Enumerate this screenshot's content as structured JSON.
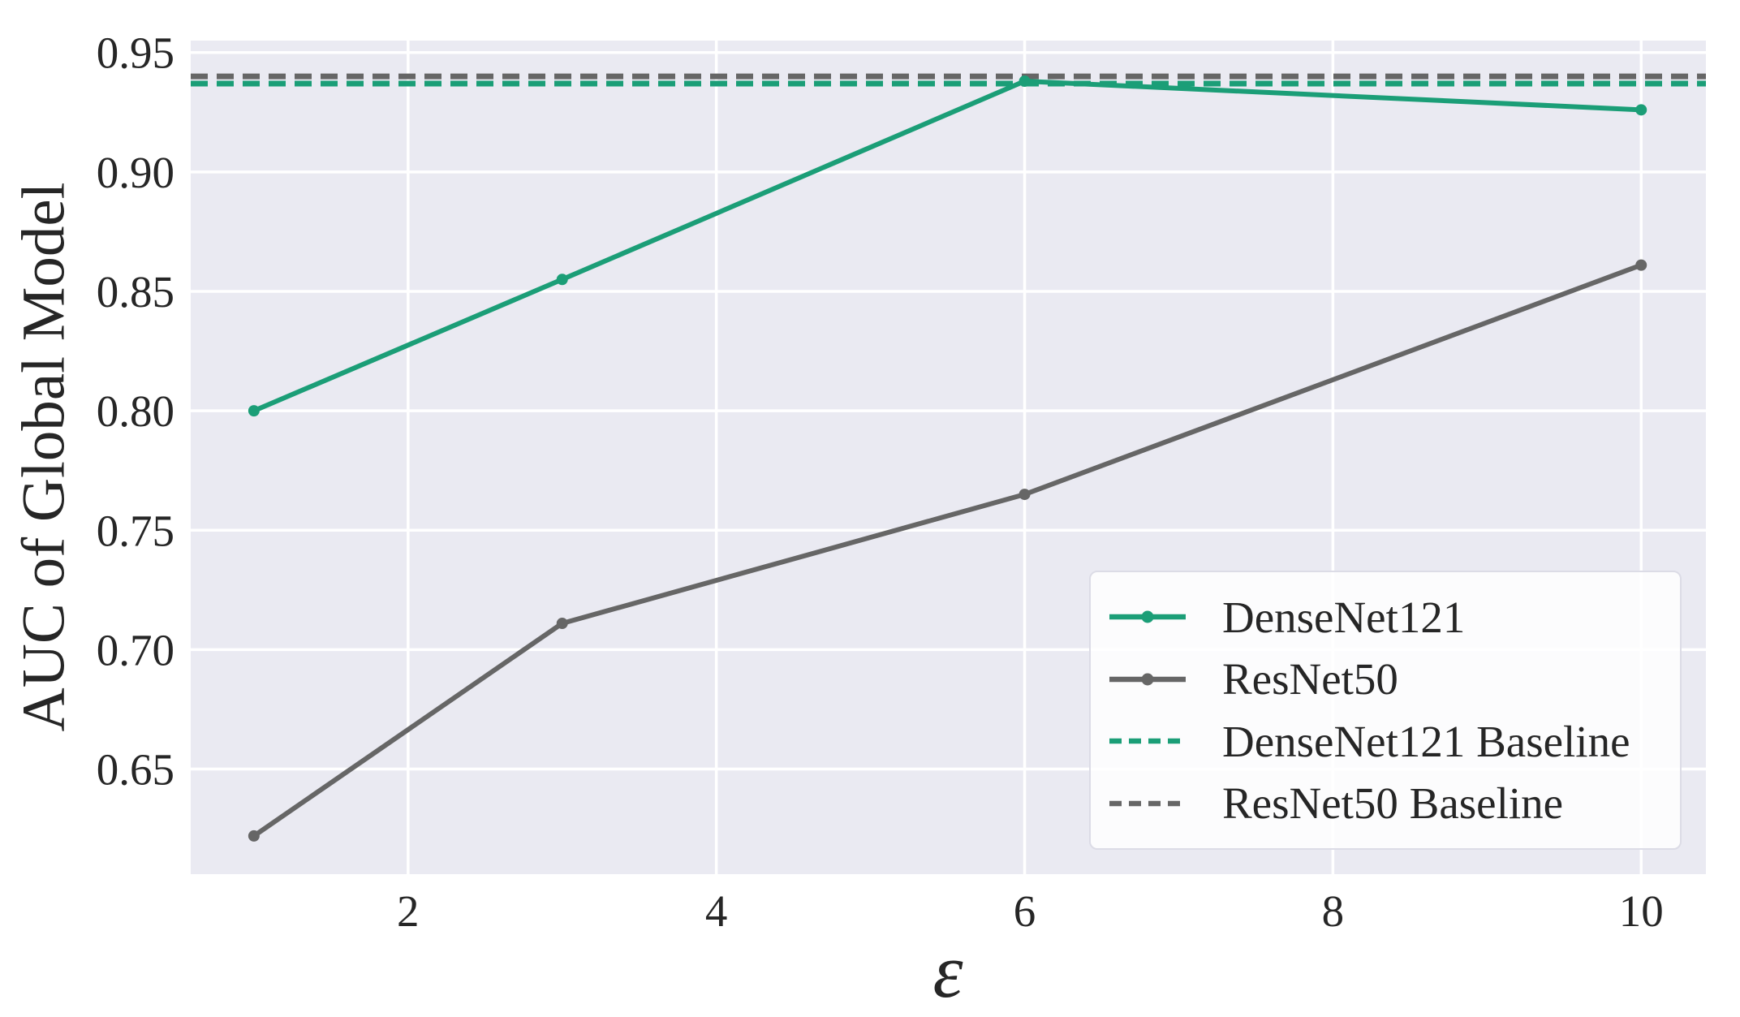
{
  "figure": {
    "background": "#ffffff",
    "plot_background": "#eaeaf2",
    "grid_color": "#ffffff",
    "text_color": "#262626"
  },
  "chart_data": {
    "type": "line",
    "title": "",
    "xlabel": "ε",
    "ylabel": "AUC of Global Model",
    "x": [
      1,
      3,
      6,
      10
    ],
    "series": [
      {
        "name": "DenseNet121",
        "color": "#1b9e77",
        "line": "solid",
        "marker": "circle",
        "values": [
          0.8,
          0.855,
          0.938,
          0.926
        ]
      },
      {
        "name": "ResNet50",
        "color": "#666666",
        "line": "solid",
        "marker": "circle",
        "values": [
          0.622,
          0.711,
          0.765,
          0.861
        ]
      }
    ],
    "baselines": [
      {
        "name": "DenseNet121 Baseline",
        "color": "#1b9e77",
        "line": "dashed",
        "value": 0.937
      },
      {
        "name": "ResNet50 Baseline",
        "color": "#666666",
        "line": "dashed",
        "value": 0.94
      }
    ],
    "xticks": [
      2,
      4,
      6,
      8,
      10
    ],
    "xtick_labels": [
      "2",
      "4",
      "6",
      "8",
      "10"
    ],
    "yticks": [
      0.65,
      0.7,
      0.75,
      0.8,
      0.85,
      0.9,
      0.95
    ],
    "ytick_labels": [
      "0.65",
      "0.70",
      "0.75",
      "0.80",
      "0.85",
      "0.90",
      "0.95"
    ],
    "xlim": [
      0.59,
      10.42
    ],
    "ylim": [
      0.606,
      0.955
    ],
    "grid": true,
    "legend": {
      "position": "lower right",
      "entries": [
        {
          "label": "DenseNet121",
          "color": "#1b9e77",
          "line": "solid",
          "marker": true
        },
        {
          "label": "ResNet50",
          "color": "#666666",
          "line": "solid",
          "marker": true
        },
        {
          "label": "DenseNet121 Baseline",
          "color": "#1b9e77",
          "line": "dashed",
          "marker": false
        },
        {
          "label": "ResNet50 Baseline",
          "color": "#666666",
          "line": "dashed",
          "marker": false
        }
      ]
    }
  }
}
